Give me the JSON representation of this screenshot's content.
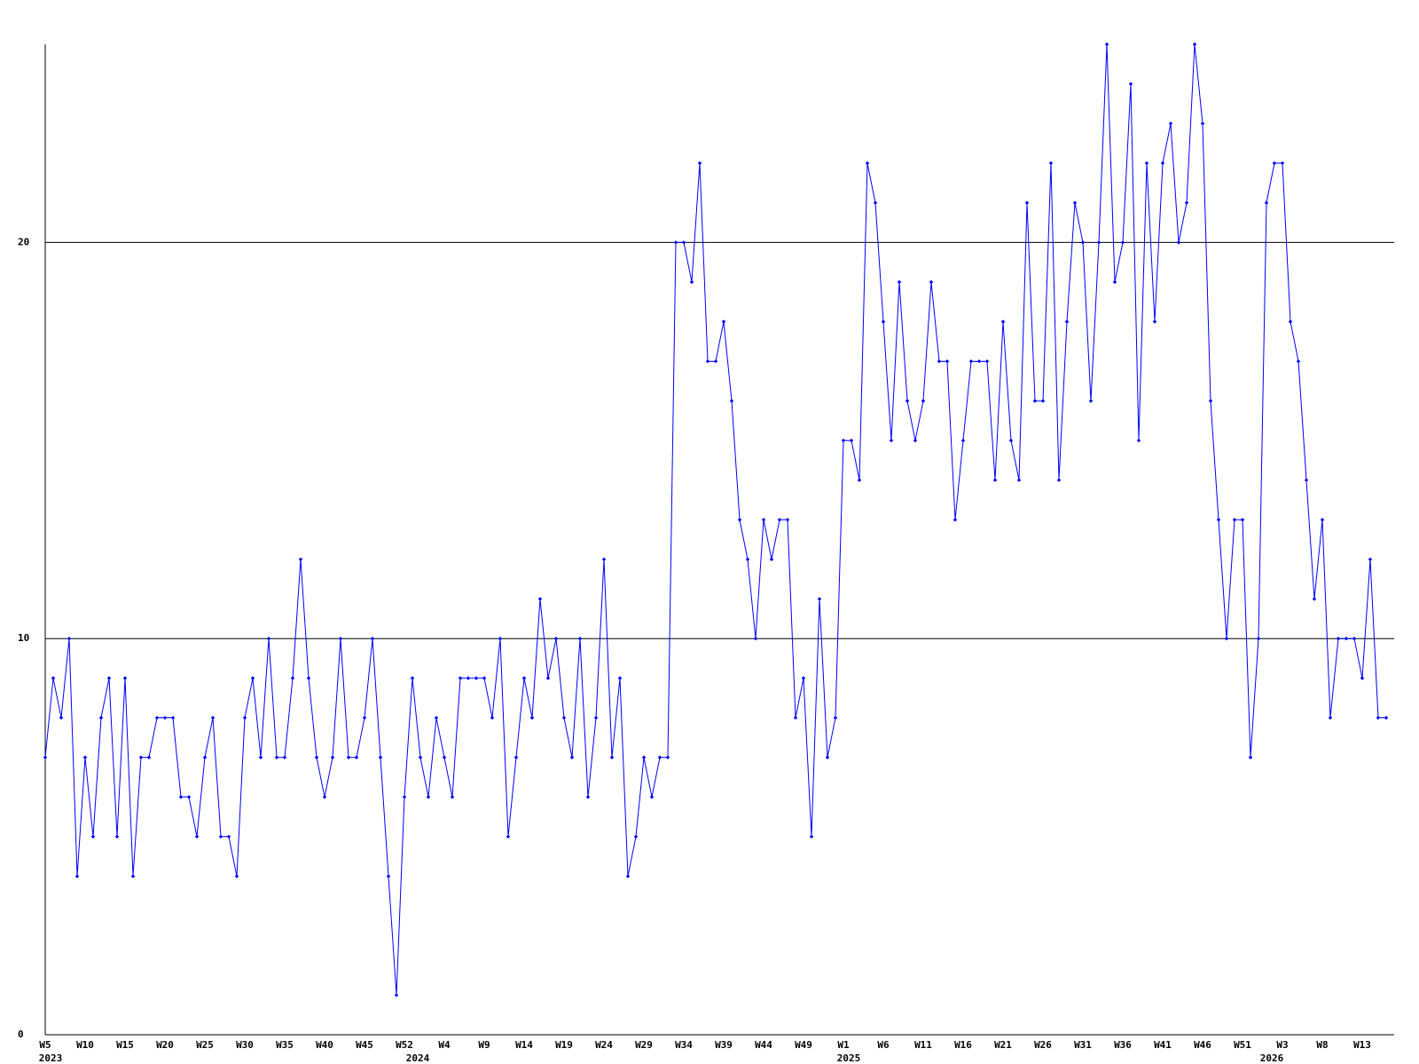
{
  "chart_data": {
    "type": "line",
    "color": "#0000ff",
    "ylim": [
      0,
      25
    ],
    "yticks": [
      0,
      10,
      20
    ],
    "grid": true,
    "categories": [
      "W5",
      null,
      null,
      null,
      null,
      "W10",
      null,
      null,
      null,
      null,
      "W15",
      null,
      null,
      null,
      null,
      "W20",
      null,
      null,
      null,
      null,
      "W25",
      null,
      null,
      null,
      null,
      "W30",
      null,
      null,
      null,
      null,
      "W35",
      null,
      null,
      null,
      null,
      "W40",
      null,
      null,
      null,
      null,
      "W45",
      null,
      null,
      null,
      null,
      "W52",
      null,
      null,
      null,
      null,
      "W4",
      null,
      null,
      null,
      null,
      "W9",
      null,
      null,
      null,
      null,
      "W14",
      null,
      null,
      null,
      null,
      "W19",
      null,
      null,
      null,
      null,
      "W24",
      null,
      null,
      null,
      null,
      "W29",
      null,
      null,
      null,
      null,
      "W34",
      null,
      null,
      null,
      null,
      "W39",
      null,
      null,
      null,
      null,
      "W44",
      null,
      null,
      null,
      null,
      "W49",
      null,
      null,
      null,
      null,
      "W1",
      null,
      null,
      null,
      null,
      "W6",
      null,
      null,
      null,
      null,
      "W11",
      null,
      null,
      null,
      null,
      "W16",
      null,
      null,
      null,
      null,
      "W21",
      null,
      null,
      null,
      null,
      "W26",
      null,
      null,
      null,
      null,
      "W31",
      null,
      null,
      null,
      null,
      "W36",
      null,
      null,
      null,
      null,
      "W41",
      null,
      null,
      null,
      null,
      "W46",
      null,
      null,
      null,
      null,
      "W51",
      null,
      null,
      null,
      null,
      "W3",
      null,
      null,
      null,
      null,
      "W8",
      null,
      null,
      null,
      null,
      "W13",
      null,
      null,
      null
    ],
    "year_labels": [
      {
        "label": "2023",
        "category_index": 0
      },
      {
        "label": "2024",
        "category_index": 46
      },
      {
        "label": "2025",
        "category_index": 100
      },
      {
        "label": "2026",
        "category_index": 153
      }
    ],
    "values": [
      7,
      9,
      8,
      10,
      4,
      7,
      5,
      8,
      9,
      5,
      9,
      4,
      7,
      7,
      8,
      8,
      8,
      6,
      6,
      5,
      7,
      8,
      5,
      5,
      4,
      8,
      9,
      7,
      10,
      7,
      7,
      9,
      12,
      9,
      7,
      6,
      7,
      10,
      7,
      7,
      8,
      10,
      7,
      4,
      1,
      6,
      9,
      7,
      6,
      8,
      7,
      6,
      9,
      9,
      9,
      9,
      8,
      10,
      5,
      7,
      9,
      8,
      11,
      9,
      10,
      8,
      7,
      10,
      6,
      8,
      12,
      7,
      9,
      4,
      5,
      7,
      6,
      7,
      7,
      20,
      20,
      19,
      22,
      17,
      17,
      18,
      16,
      13,
      12,
      10,
      13,
      12,
      13,
      13,
      8,
      9,
      5,
      11,
      7,
      8,
      15,
      15,
      14,
      22,
      21,
      18,
      15,
      19,
      16,
      15,
      16,
      19,
      17,
      17,
      13,
      15,
      17,
      17,
      17,
      14,
      18,
      15,
      14,
      21,
      16,
      16,
      22,
      14,
      18,
      21,
      20,
      16,
      20,
      25,
      19,
      20,
      24,
      15,
      22,
      18,
      22,
      23,
      20,
      21,
      25,
      23,
      16,
      13,
      10,
      13,
      13,
      7,
      10,
      21,
      22,
      22,
      18,
      17,
      14,
      11,
      13,
      8,
      10,
      10,
      10,
      9,
      12,
      8,
      8
    ]
  }
}
